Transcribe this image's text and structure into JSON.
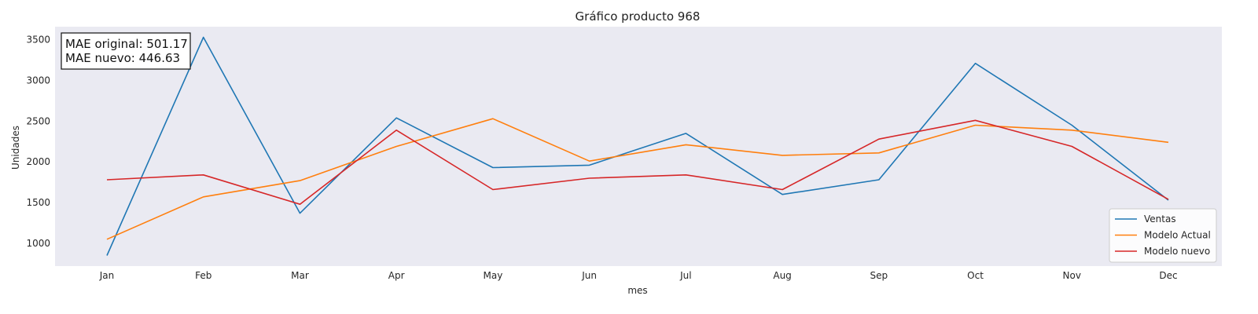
{
  "chart_data": {
    "type": "line",
    "title": "Gráfico producto 968",
    "xlabel": "mes",
    "ylabel": "Unidades",
    "categories": [
      "Jan",
      "Feb",
      "Mar",
      "Apr",
      "May",
      "Jun",
      "Jul",
      "Aug",
      "Sep",
      "Oct",
      "Nov",
      "Dec"
    ],
    "yticks": [
      1000,
      1500,
      2000,
      2500,
      3000,
      3500
    ],
    "ylim": [
      720,
      3660
    ],
    "grid": false,
    "legend_position": "lower-right",
    "series": [
      {
        "name": "Ventas",
        "color": "#1f77b4",
        "values": [
          850,
          3530,
          1370,
          2540,
          1930,
          1960,
          2350,
          1600,
          1780,
          3210,
          2450,
          1530
        ]
      },
      {
        "name": "Modelo Actual",
        "color": "#ff7f0e",
        "values": [
          1050,
          1570,
          1770,
          2190,
          2530,
          2010,
          2210,
          2080,
          2110,
          2450,
          2390,
          2240
        ]
      },
      {
        "name": "Modelo nuevo",
        "color": "#d62728",
        "values": [
          1780,
          1840,
          1480,
          2390,
          1660,
          1800,
          1840,
          1660,
          2280,
          2510,
          2190,
          1540
        ]
      }
    ]
  },
  "annotation": {
    "line1": "MAE original: 501.17",
    "line2": "MAE nuevo: 446.63"
  }
}
